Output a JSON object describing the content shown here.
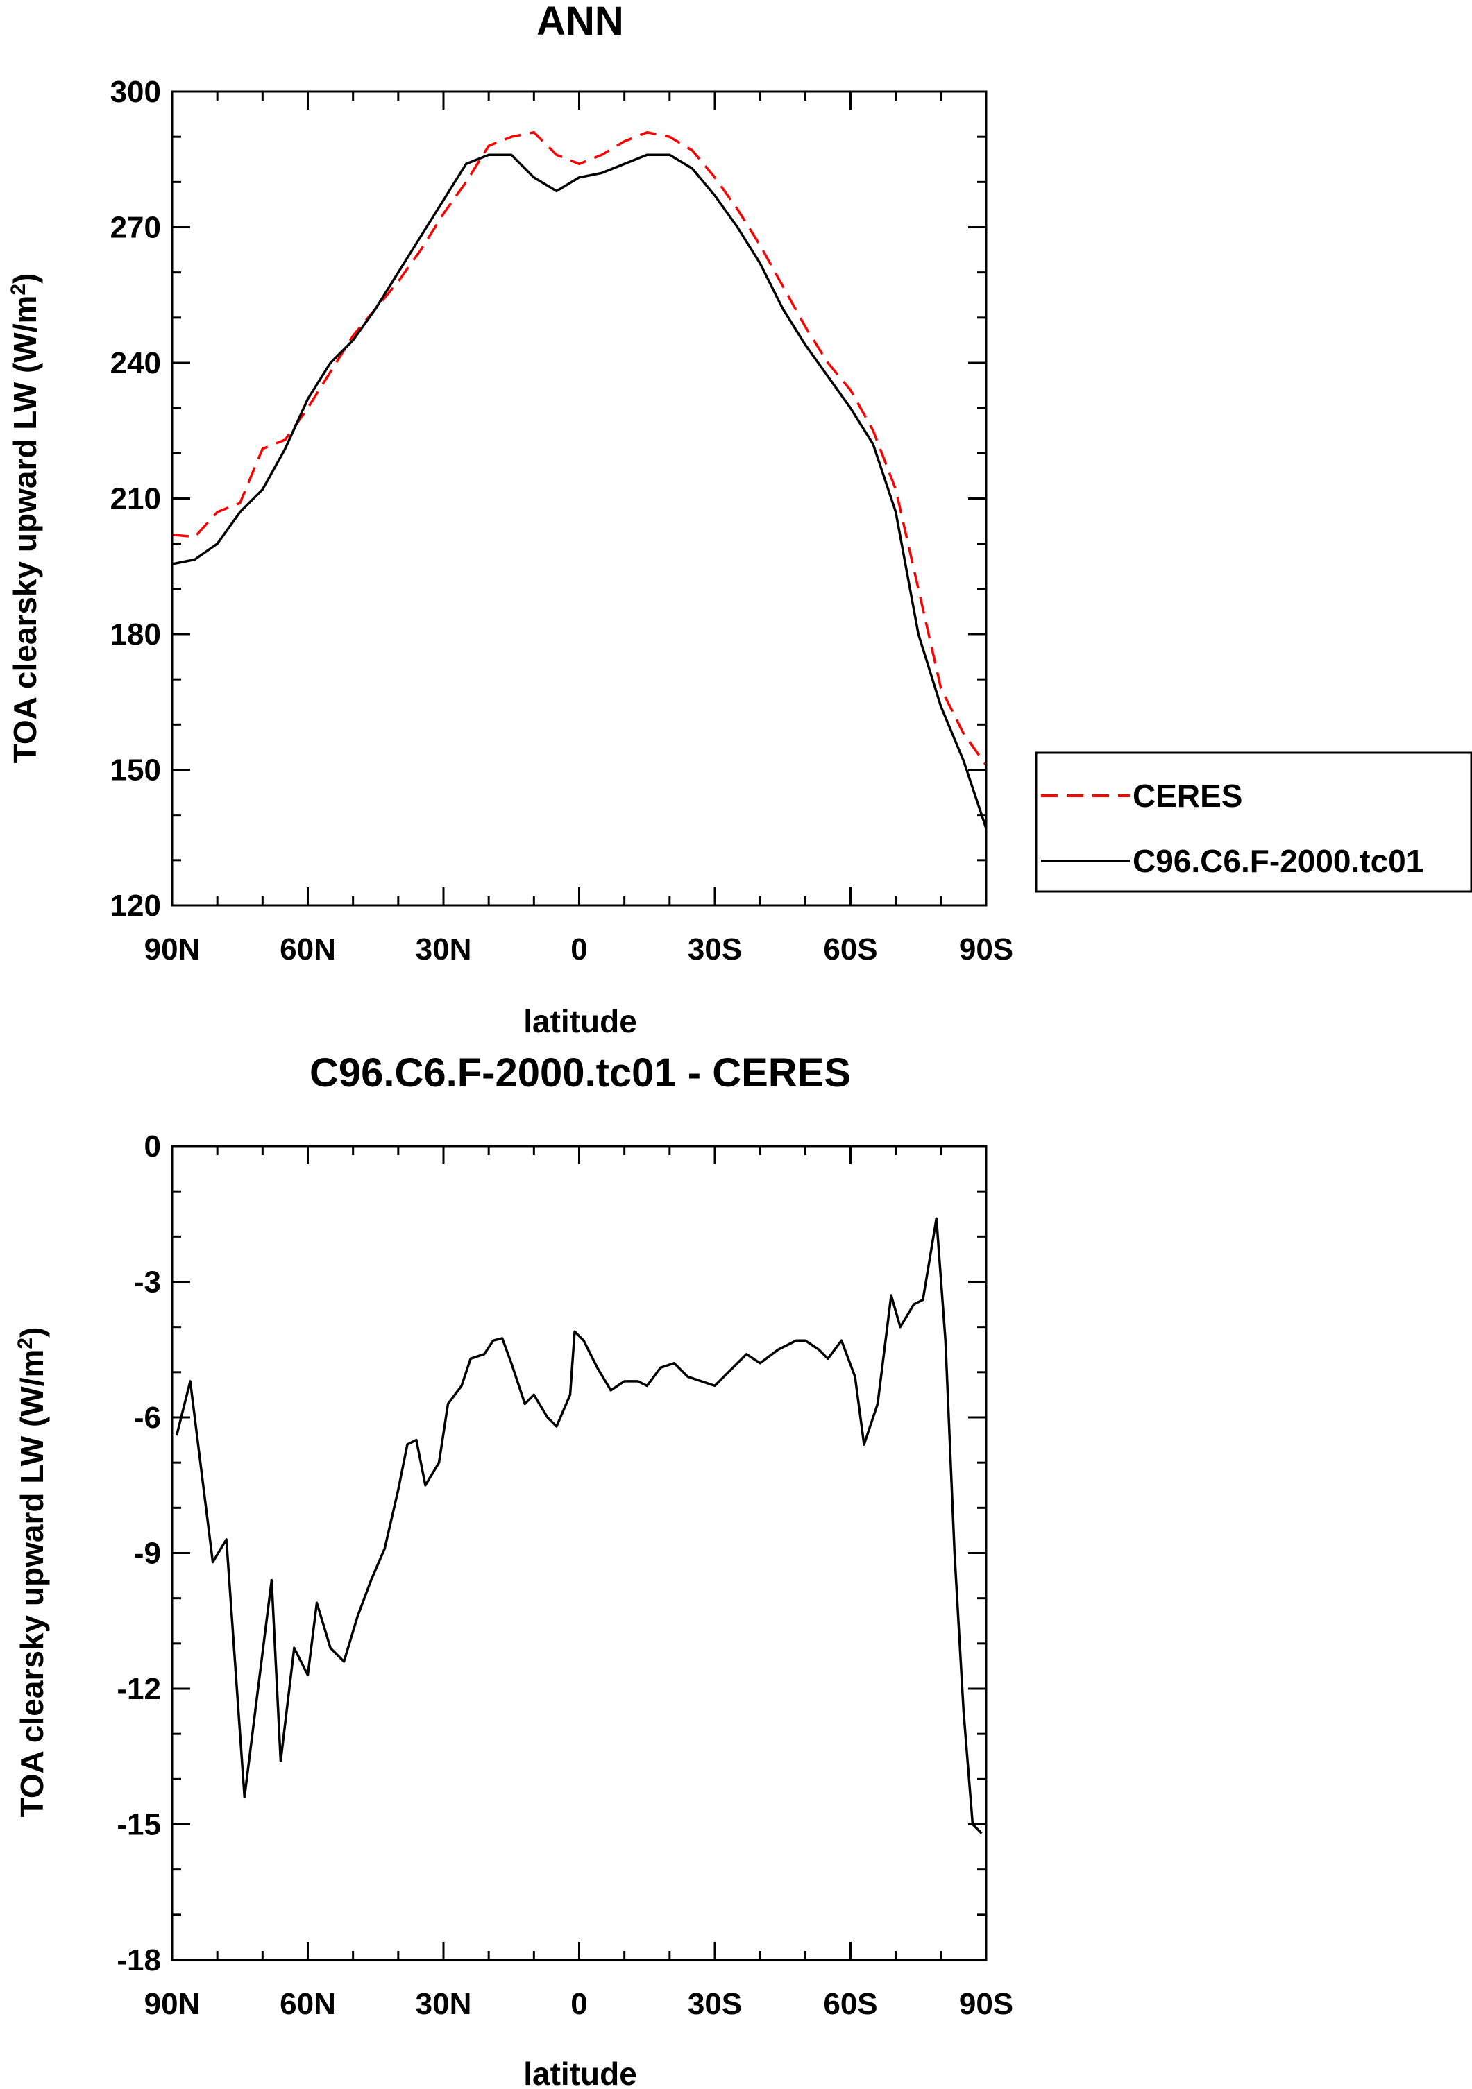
{
  "colors": {
    "ceres": "#ff0000",
    "model": "#000000"
  },
  "chart_data": [
    {
      "type": "line",
      "title": "ANN",
      "xlabel": "latitude",
      "ylabel_prefix": "TOA clearsky upward LW (W/m",
      "ylabel_sup": "2",
      "ylabel_suffix": ")",
      "xlim": [
        90,
        -90
      ],
      "ylim": [
        120,
        300
      ],
      "x_ticks": [
        {
          "v": 90,
          "label": "90N"
        },
        {
          "v": 60,
          "label": "60N"
        },
        {
          "v": 30,
          "label": "30N"
        },
        {
          "v": 0,
          "label": "0"
        },
        {
          "v": -30,
          "label": "30S"
        },
        {
          "v": -60,
          "label": "60S"
        },
        {
          "v": -90,
          "label": "90S"
        }
      ],
      "y_ticks": [
        {
          "v": 120,
          "label": "120"
        },
        {
          "v": 150,
          "label": "150"
        },
        {
          "v": 180,
          "label": "180"
        },
        {
          "v": 210,
          "label": "210"
        },
        {
          "v": 240,
          "label": "240"
        },
        {
          "v": 270,
          "label": "270"
        },
        {
          "v": 300,
          "label": "300"
        }
      ],
      "x_minor_step": 10,
      "y_minor_step": 10,
      "legend": {
        "position": "right",
        "entries": [
          {
            "name": "CERES",
            "style": "dashed",
            "color": "#ff0000"
          },
          {
            "name": "C96.C6.F-2000.tc01",
            "style": "solid",
            "color": "#000000"
          }
        ]
      },
      "series": [
        {
          "name": "CERES",
          "x": [
            90,
            85,
            80,
            75,
            70,
            65,
            60,
            55,
            50,
            45,
            40,
            35,
            30,
            25,
            20,
            15,
            10,
            5,
            0,
            -5,
            -10,
            -15,
            -20,
            -25,
            -30,
            -35,
            -40,
            -45,
            -50,
            -55,
            -60,
            -65,
            -70,
            -75,
            -80,
            -85,
            -90
          ],
          "values": [
            202,
            201.5,
            207,
            209,
            221,
            223,
            230,
            238,
            246,
            252,
            258,
            265,
            273,
            280,
            288,
            290,
            291,
            286,
            284,
            286,
            289,
            291,
            290,
            287,
            281,
            274,
            266,
            257,
            248,
            240,
            234,
            225,
            212,
            190,
            168,
            158,
            151
          ]
        },
        {
          "name": "C96.C6.F-2000.tc01",
          "x": [
            90,
            85,
            80,
            75,
            70,
            65,
            60,
            55,
            50,
            45,
            40,
            35,
            30,
            25,
            20,
            15,
            10,
            5,
            0,
            -5,
            -10,
            -15,
            -20,
            -25,
            -30,
            -35,
            -40,
            -45,
            -50,
            -55,
            -60,
            -65,
            -70,
            -75,
            -80,
            -85,
            -90
          ],
          "values": [
            195.5,
            196.5,
            200,
            207,
            212,
            221,
            232,
            240,
            245,
            252,
            260,
            268,
            276,
            284,
            286,
            286,
            281,
            278,
            281,
            282,
            284,
            286,
            286,
            283,
            277,
            270,
            262,
            252,
            244,
            237,
            230,
            222,
            207,
            180,
            164,
            152,
            137
          ]
        }
      ]
    },
    {
      "type": "line",
      "title": "C96.C6.F-2000.tc01 - CERES",
      "xlabel": "latitude",
      "ylabel_prefix": "TOA clearsky upward LW (W/m",
      "ylabel_sup": "2",
      "ylabel_suffix": ")",
      "xlim": [
        90,
        -90
      ],
      "ylim": [
        -18,
        0
      ],
      "x_ticks": [
        {
          "v": 90,
          "label": "90N"
        },
        {
          "v": 60,
          "label": "60N"
        },
        {
          "v": 30,
          "label": "30N"
        },
        {
          "v": 0,
          "label": "0"
        },
        {
          "v": -30,
          "label": "30S"
        },
        {
          "v": -60,
          "label": "60S"
        },
        {
          "v": -90,
          "label": "90S"
        }
      ],
      "y_ticks": [
        {
          "v": -18,
          "label": "-18"
        },
        {
          "v": -15,
          "label": "-15"
        },
        {
          "v": -12,
          "label": "-12"
        },
        {
          "v": -9,
          "label": "-9"
        },
        {
          "v": -6,
          "label": "-6"
        },
        {
          "v": -3,
          "label": "-3"
        },
        {
          "v": 0,
          "label": "0"
        }
      ],
      "x_minor_step": 10,
      "y_minor_step": 1,
      "series": [
        {
          "name": "C96.C6.F-2000.tc01 - CERES",
          "x": [
            89,
            86,
            83,
            81,
            78,
            74,
            71,
            68,
            66,
            63,
            60,
            58,
            55,
            52,
            49,
            46,
            43,
            40,
            38,
            36,
            34,
            31,
            29,
            26,
            24,
            21,
            19,
            17,
            15,
            12,
            10,
            7,
            5,
            2,
            1,
            -1,
            -4,
            -7,
            -10,
            -13,
            -15,
            -18,
            -21,
            -24,
            -27,
            -30,
            -32,
            -35,
            -37,
            -40,
            -44,
            -48,
            -50,
            -53,
            -55,
            -58,
            -61,
            -63,
            -66,
            -69,
            -71,
            -74,
            -76,
            -79,
            -81,
            -83,
            -85,
            -87,
            -89
          ],
          "values": [
            -6.4,
            -5.2,
            -7.6,
            -9.2,
            -8.7,
            -14.4,
            -12.0,
            -9.6,
            -13.6,
            -11.1,
            -11.7,
            -10.1,
            -11.1,
            -11.4,
            -10.4,
            -9.6,
            -8.9,
            -7.6,
            -6.6,
            -6.5,
            -7.5,
            -7.0,
            -5.7,
            -5.3,
            -4.7,
            -4.6,
            -4.3,
            -4.25,
            -4.8,
            -5.7,
            -5.5,
            -6.0,
            -6.2,
            -5.5,
            -4.1,
            -4.3,
            -4.9,
            -5.4,
            -5.2,
            -5.2,
            -5.3,
            -4.9,
            -4.8,
            -5.1,
            -5.2,
            -5.3,
            -5.1,
            -4.8,
            -4.6,
            -4.8,
            -4.5,
            -4.3,
            -4.3,
            -4.5,
            -4.7,
            -4.3,
            -5.1,
            -6.6,
            -5.7,
            -3.3,
            -4.0,
            -3.5,
            -3.4,
            -1.6,
            -4.3,
            -9.0,
            -12.5,
            -15.0,
            -15.2
          ]
        }
      ]
    }
  ]
}
